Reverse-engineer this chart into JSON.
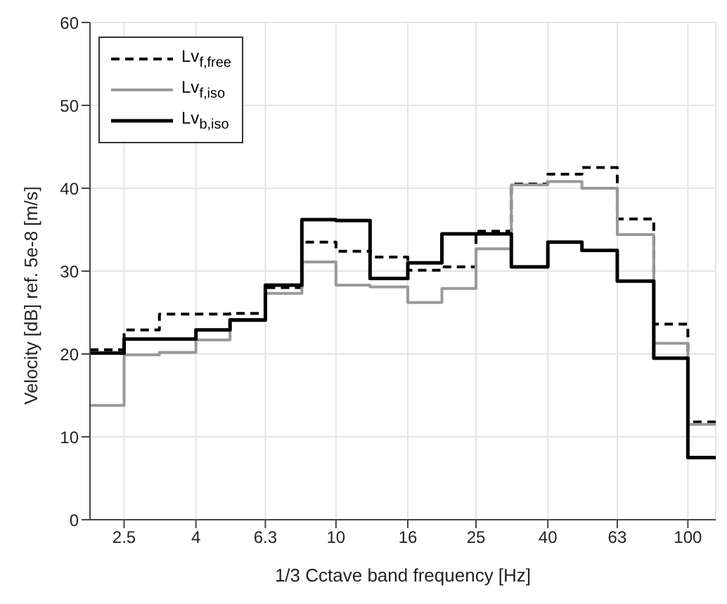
{
  "chart_data": {
    "type": "step",
    "xlabel": "1/3 Cctave band frequency [Hz]",
    "ylabel": "Velocity [dB] ref. 5e-8 [m/s]",
    "x": [
      2,
      2.5,
      3.15,
      4,
      5,
      6.3,
      8,
      10,
      12.5,
      16,
      20,
      25,
      31.5,
      40,
      50,
      63,
      80,
      100,
      120
    ],
    "series": [
      {
        "name": "Lv$_{f,free}$",
        "color": "#000000",
        "line_style": "dashed",
        "values": [
          20.5,
          22.9,
          24.8,
          24.8,
          24.9,
          28.0,
          33.5,
          32.4,
          31.7,
          30.1,
          30.5,
          34.8,
          40.5,
          41.7,
          42.5,
          36.3,
          23.6,
          11.8,
          11.8
        ]
      },
      {
        "name": "Lv$_{f,iso}$",
        "color": "#999999",
        "line_style": "solid",
        "values": [
          13.8,
          19.9,
          20.2,
          21.7,
          24.0,
          27.3,
          31.1,
          28.3,
          28.1,
          26.2,
          27.9,
          32.7,
          40.4,
          40.8,
          40.0,
          34.4,
          21.3,
          11.5,
          11.5
        ]
      },
      {
        "name": "Lv$_{b,iso}$",
        "color": "#000000",
        "line_style": "solid",
        "values": [
          20.1,
          21.8,
          21.8,
          22.9,
          24.1,
          28.3,
          36.2,
          36.1,
          29.1,
          31.0,
          34.5,
          34.5,
          30.5,
          33.5,
          32.5,
          28.8,
          19.5,
          7.5,
          7.5
        ]
      }
    ],
    "log": "x",
    "xlim": [
      2,
      120
    ],
    "xticks": [
      2.5,
      4,
      6.3,
      10,
      16,
      25,
      40,
      63,
      100
    ],
    "ylim": [
      0,
      60
    ],
    "yticks": [
      0,
      10,
      20,
      30,
      40,
      50,
      60
    ],
    "grid": true,
    "legend": "top left"
  }
}
